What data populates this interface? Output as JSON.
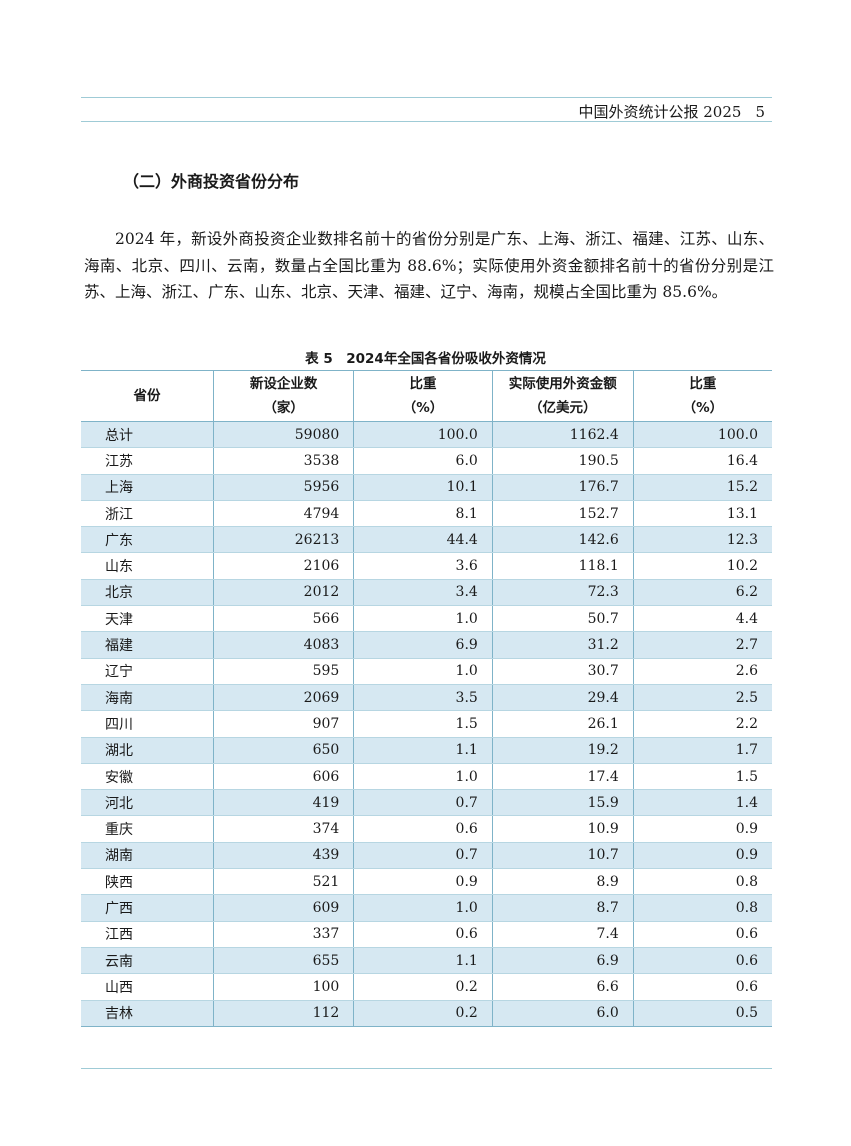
{
  "header": {
    "title": "中国外资统计公报 2025",
    "page": "5"
  },
  "section_title": "（二）外商投资省份分布",
  "paragraph": "2024 年，新设外商投资企业数排名前十的省份分别是广东、上海、浙江、福建、江苏、山东、海南、北京、四川、云南，数量占全国比重为 88.6%；实际使用外资金额排名前十的省份分别是江苏、上海、浙江、广东、山东、北京、天津、福建、辽宁、海南，规模占全国比重为 85.6%。",
  "table": {
    "caption": "表 5　2024年全国各省份吸收外资情况",
    "headers": [
      {
        "line1": "省份",
        "line2": ""
      },
      {
        "line1": "新设企业数",
        "line2": "（家）"
      },
      {
        "line1": "比重",
        "line2": "（%）"
      },
      {
        "line1": "实际使用外资金额",
        "line2": "（亿美元）"
      },
      {
        "line1": "比重",
        "line2": "（%）"
      }
    ],
    "rows": [
      [
        "总计",
        "59080",
        "100.0",
        "1162.4",
        "100.0"
      ],
      [
        "江苏",
        "3538",
        "6.0",
        "190.5",
        "16.4"
      ],
      [
        "上海",
        "5956",
        "10.1",
        "176.7",
        "15.2"
      ],
      [
        "浙江",
        "4794",
        "8.1",
        "152.7",
        "13.1"
      ],
      [
        "广东",
        "26213",
        "44.4",
        "142.6",
        "12.3"
      ],
      [
        "山东",
        "2106",
        "3.6",
        "118.1",
        "10.2"
      ],
      [
        "北京",
        "2012",
        "3.4",
        "72.3",
        "6.2"
      ],
      [
        "天津",
        "566",
        "1.0",
        "50.7",
        "4.4"
      ],
      [
        "福建",
        "4083",
        "6.9",
        "31.2",
        "2.7"
      ],
      [
        "辽宁",
        "595",
        "1.0",
        "30.7",
        "2.6"
      ],
      [
        "海南",
        "2069",
        "3.5",
        "29.4",
        "2.5"
      ],
      [
        "四川",
        "907",
        "1.5",
        "26.1",
        "2.2"
      ],
      [
        "湖北",
        "650",
        "1.1",
        "19.2",
        "1.7"
      ],
      [
        "安徽",
        "606",
        "1.0",
        "17.4",
        "1.5"
      ],
      [
        "河北",
        "419",
        "0.7",
        "15.9",
        "1.4"
      ],
      [
        "重庆",
        "374",
        "0.6",
        "10.9",
        "0.9"
      ],
      [
        "湖南",
        "439",
        "0.7",
        "10.7",
        "0.9"
      ],
      [
        "陕西",
        "521",
        "0.9",
        "8.9",
        "0.8"
      ],
      [
        "广西",
        "609",
        "1.0",
        "8.7",
        "0.8"
      ],
      [
        "江西",
        "337",
        "0.6",
        "7.4",
        "0.6"
      ],
      [
        "云南",
        "655",
        "1.1",
        "6.9",
        "0.6"
      ],
      [
        "山西",
        "100",
        "0.2",
        "6.6",
        "0.6"
      ],
      [
        "吉林",
        "112",
        "0.2",
        "6.0",
        "0.5"
      ]
    ]
  },
  "colors": {
    "rule": "#9fcbd6",
    "row_shade": "#d6e8f2",
    "table_border": "#7fb3c8"
  }
}
